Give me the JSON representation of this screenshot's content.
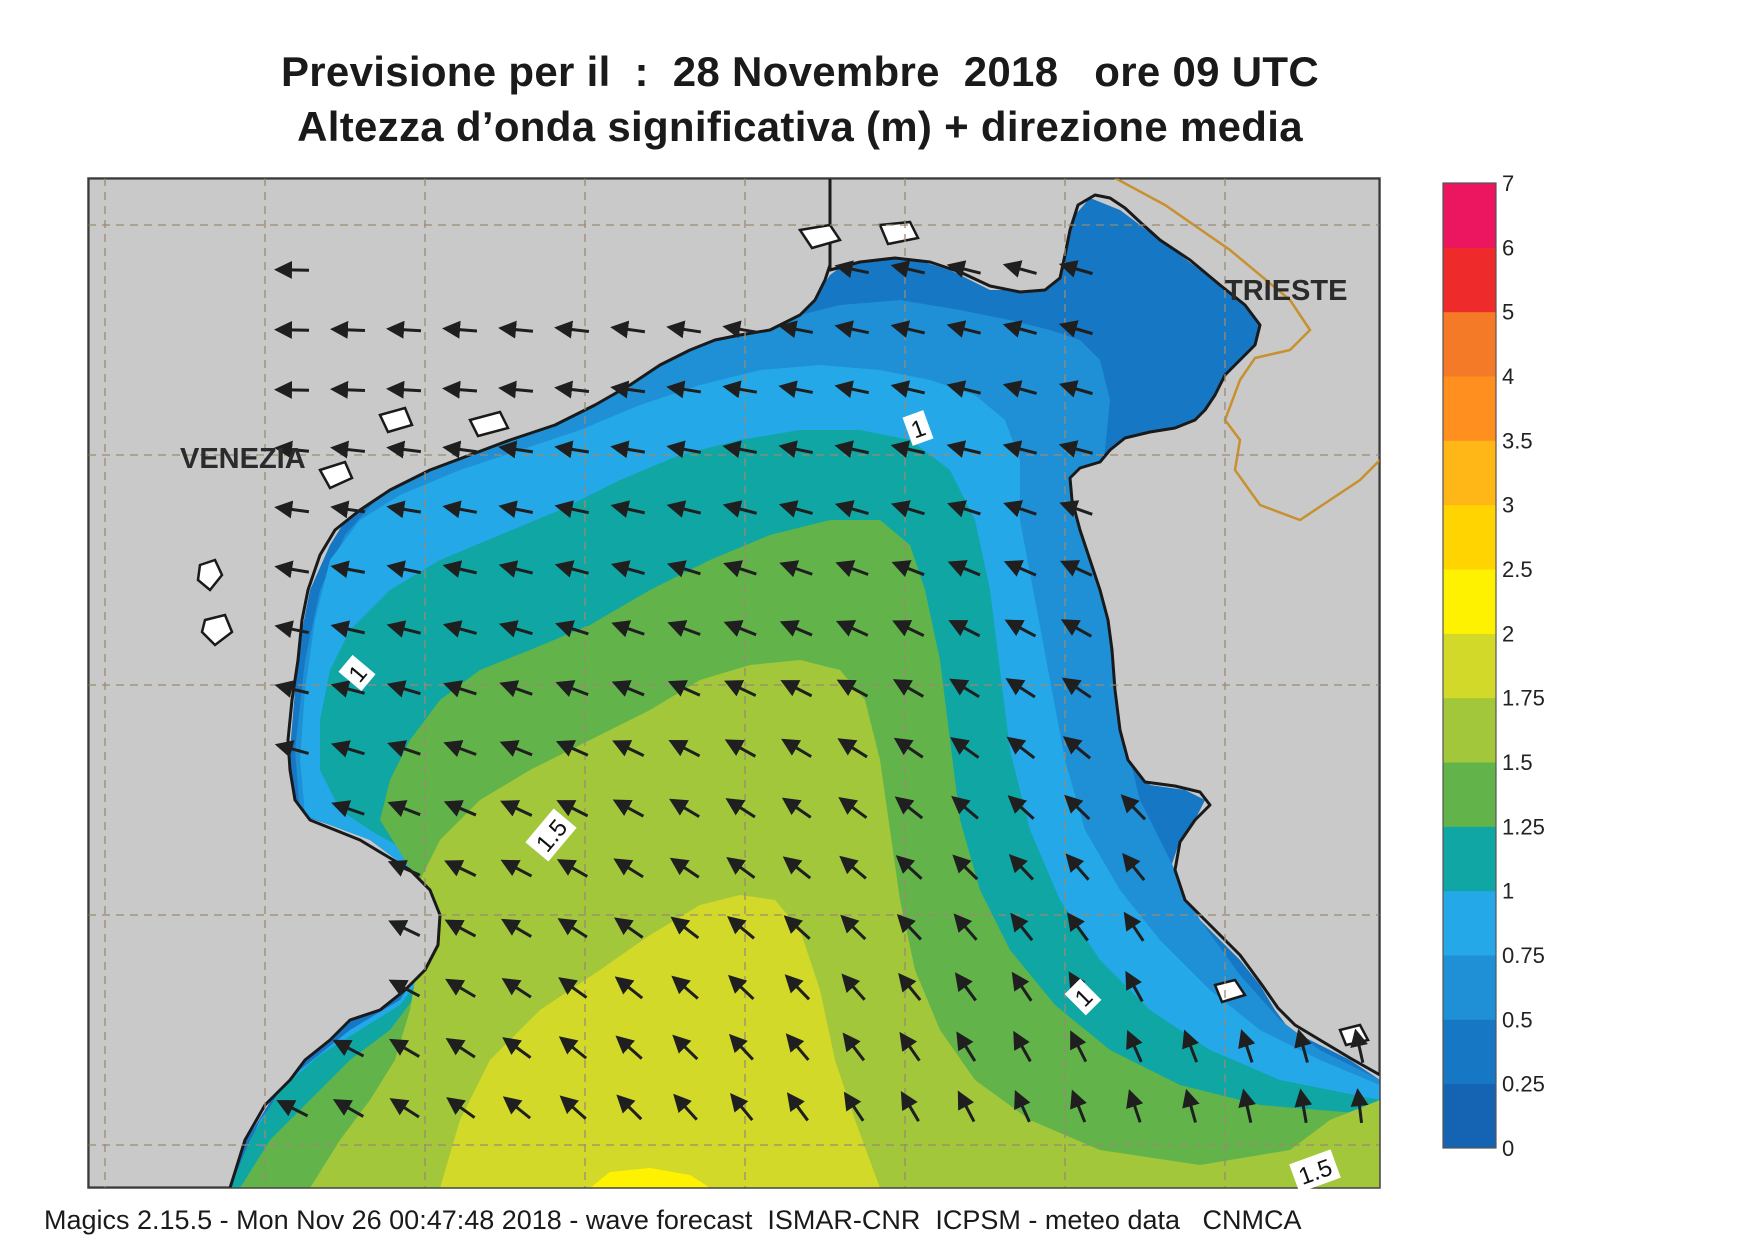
{
  "title": {
    "line1": "Previsione per il  :  28 Novembre  2018   ore 09 UTC",
    "line2": "Altezza d’onda significativa (m) + direzione media"
  },
  "map": {
    "places": [
      "VENEZIA",
      "TRIESTE"
    ],
    "contour_labels": [
      "1",
      "1",
      "1",
      "1.5",
      "1.5"
    ],
    "colors": {
      "land": "#c9c9c9",
      "coast": "#1a1a1a",
      "border": "#c8902e",
      "grid": "#9a8a72",
      "arrow": "#1f1f1f"
    }
  },
  "legend": {
    "levels": [
      "0",
      "0.25",
      "0.5",
      "0.75",
      "1",
      "1.25",
      "1.5",
      "1.75",
      "2",
      "2.5",
      "3",
      "3.5",
      "4",
      "5",
      "6",
      "7"
    ],
    "colors": [
      "#1564b4",
      "#1677c4",
      "#1f8fd6",
      "#24a8e8",
      "#0fa6a4",
      "#62b44a",
      "#a2c73b",
      "#d3d928",
      "#fff200",
      "#ffd400",
      "#ffb617",
      "#ff9020",
      "#f57a28",
      "#ee2a2a",
      "#ec1560"
    ]
  },
  "footer": "Magics 2.15.5 - Mon Nov 26 00:47:48 2018 - wave forecast  ISMAR-CNR  ICPSM - meteo data   CNMCA"
}
